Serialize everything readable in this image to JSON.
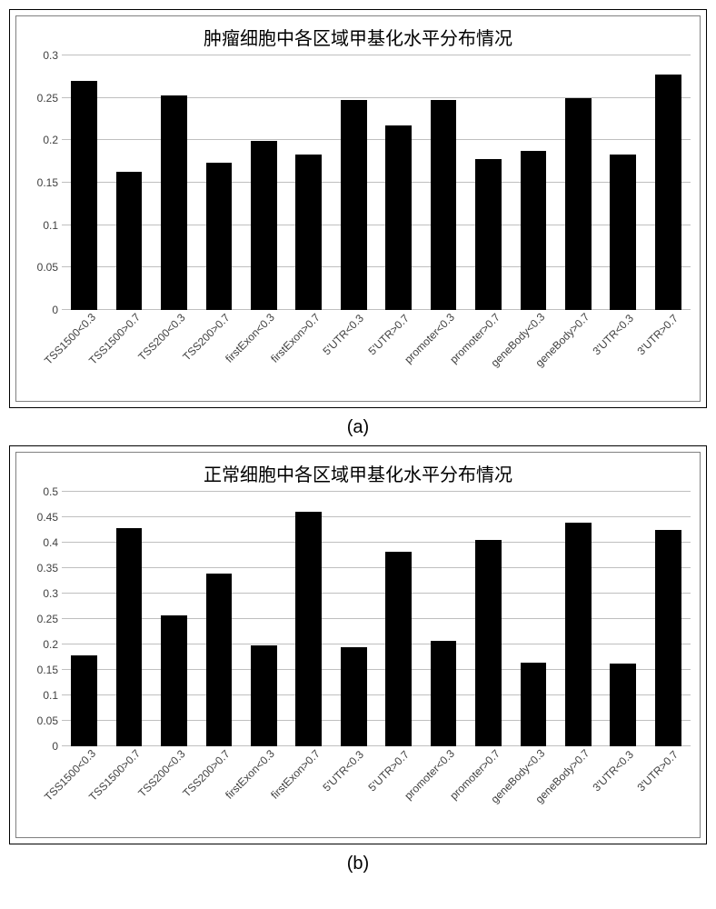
{
  "chart_a": {
    "type": "bar",
    "title": "肿瘤细胞中各区域甲基化水平分布情况",
    "title_fontsize": 20,
    "ylim": [
      0,
      0.3
    ],
    "yticks": [
      0,
      0.05,
      0.1,
      0.15,
      0.2,
      0.25,
      0.3
    ],
    "grid_color": "#bfbfbf",
    "background_color": "#ffffff",
    "bar_color": "#000000",
    "bar_width": 0.58,
    "label_fontsize": 12,
    "categories": [
      "TSS1500<0.3",
      "TSS1500>0.7",
      "TSS200<0.3",
      "TSS200>0.7",
      "firstExon<0.3",
      "firstExon>0.7",
      "5'UTR<0.3",
      "5'UTR>0.7",
      "promoter<0.3",
      "promoter>0.7",
      "geneBody<0.3",
      "geneBody>0.7",
      "3'UTR<0.3",
      "3'UTR>0.7"
    ],
    "values": [
      0.27,
      0.163,
      0.253,
      0.174,
      0.199,
      0.183,
      0.247,
      0.218,
      0.247,
      0.178,
      0.188,
      0.25,
      0.183,
      0.277
    ],
    "caption": "(a)"
  },
  "chart_b": {
    "type": "bar",
    "title": "正常细胞中各区域甲基化水平分布情况",
    "title_fontsize": 20,
    "ylim": [
      0,
      0.5
    ],
    "yticks": [
      0,
      0.05,
      0.1,
      0.15,
      0.2,
      0.25,
      0.3,
      0.35,
      0.4,
      0.45,
      0.5
    ],
    "grid_color": "#bfbfbf",
    "background_color": "#ffffff",
    "bar_color": "#000000",
    "bar_width": 0.58,
    "label_fontsize": 12,
    "categories": [
      "TSS1500<0.3",
      "TSS1500>0.7",
      "TSS200<0.3",
      "TSS200>0.7",
      "firstExon<0.3",
      "firstExon>0.7",
      "5'UTR<0.3",
      "5'UTR>0.7",
      "promoter<0.3",
      "promoter>0.7",
      "geneBody<0.3",
      "geneBody>0.7",
      "3'UTR<0.3",
      "3'UTR>0.7"
    ],
    "values": [
      0.178,
      0.428,
      0.258,
      0.34,
      0.198,
      0.46,
      0.195,
      0.382,
      0.208,
      0.405,
      0.165,
      0.44,
      0.162,
      0.425
    ],
    "caption": "(b)"
  }
}
